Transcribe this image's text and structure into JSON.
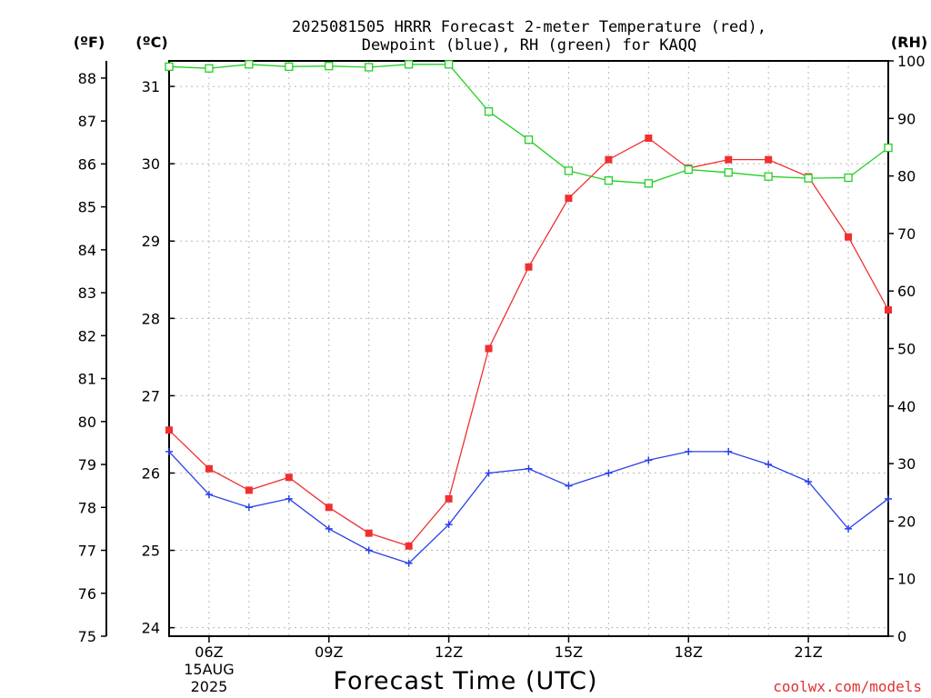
{
  "chart_data": {
    "type": "line",
    "title_line1": "2025081505 HRRR Forecast 2-meter Temperature (red),",
    "title_line2": "Dewpoint (blue), RH (green) for KAQQ",
    "xlabel": "Forecast Time (UTC)",
    "credit": "coolwx.com/models",
    "axes": {
      "left_outer": {
        "unit_label": "(ºF)",
        "ticks": [
          "75",
          "76",
          "77",
          "78",
          "79",
          "80",
          "81",
          "82",
          "83",
          "84",
          "85",
          "86",
          "87",
          "88"
        ],
        "ylim": [
          75,
          88.4
        ]
      },
      "left_inner": {
        "unit_label": "(ºC)",
        "ticks": [
          "24",
          "25",
          "26",
          "27",
          "28",
          "29",
          "30",
          "31"
        ],
        "ylim": [
          23.89,
          31.33
        ]
      },
      "right": {
        "unit_label": "(RH)",
        "ticks": [
          "0",
          "10",
          "20",
          "30",
          "40",
          "50",
          "60",
          "70",
          "80",
          "90",
          "100"
        ],
        "ylim": [
          0,
          100
        ]
      }
    },
    "x_ticks": [
      {
        "hour": 6,
        "label": "06Z",
        "sub1": "15AUG",
        "sub2": "2025"
      },
      {
        "hour": 9,
        "label": "09Z"
      },
      {
        "hour": 12,
        "label": "12Z"
      },
      {
        "hour": 15,
        "label": "15Z"
      },
      {
        "hour": 18,
        "label": "18Z"
      },
      {
        "hour": 21,
        "label": "21Z"
      }
    ],
    "xlim": [
      5,
      23
    ],
    "grid": true,
    "series": [
      {
        "name": "Temperature",
        "unit": "F",
        "color": "#f03030",
        "marker": "filled-square",
        "x": [
          5,
          6,
          7,
          8,
          9,
          10,
          11,
          12,
          13,
          14,
          15,
          16,
          17,
          18,
          19,
          20,
          21,
          22,
          23
        ],
        "values": [
          79.8,
          78.9,
          78.4,
          78.7,
          78.0,
          77.4,
          77.1,
          78.2,
          81.7,
          83.6,
          85.2,
          86.1,
          86.6,
          85.9,
          86.1,
          86.1,
          85.7,
          84.3,
          82.6
        ]
      },
      {
        "name": "Dewpoint",
        "unit": "F",
        "color": "#2a40e8",
        "marker": "plus",
        "x": [
          5,
          6,
          7,
          8,
          9,
          10,
          11,
          12,
          13,
          14,
          15,
          16,
          17,
          18,
          19,
          20,
          21,
          22,
          23
        ],
        "values": [
          79.3,
          78.3,
          78.0,
          78.2,
          77.5,
          77.0,
          76.7,
          77.6,
          78.8,
          78.9,
          78.5,
          78.8,
          79.1,
          79.3,
          79.3,
          79.0,
          78.6,
          77.5,
          78.2
        ]
      },
      {
        "name": "RH",
        "unit": "%",
        "color": "#22d022",
        "marker": "open-square",
        "x": [
          5,
          6,
          7,
          8,
          9,
          10,
          11,
          12,
          13,
          14,
          15,
          16,
          17,
          18,
          19,
          20,
          21,
          22,
          23
        ],
        "values": [
          99,
          98.7,
          99.4,
          99,
          99.1,
          98.9,
          99.4,
          99.4,
          91.2,
          86.3,
          80.9,
          79.2,
          78.7,
          81.1,
          80.6,
          79.9,
          79.6,
          79.7,
          84.9
        ]
      }
    ]
  }
}
